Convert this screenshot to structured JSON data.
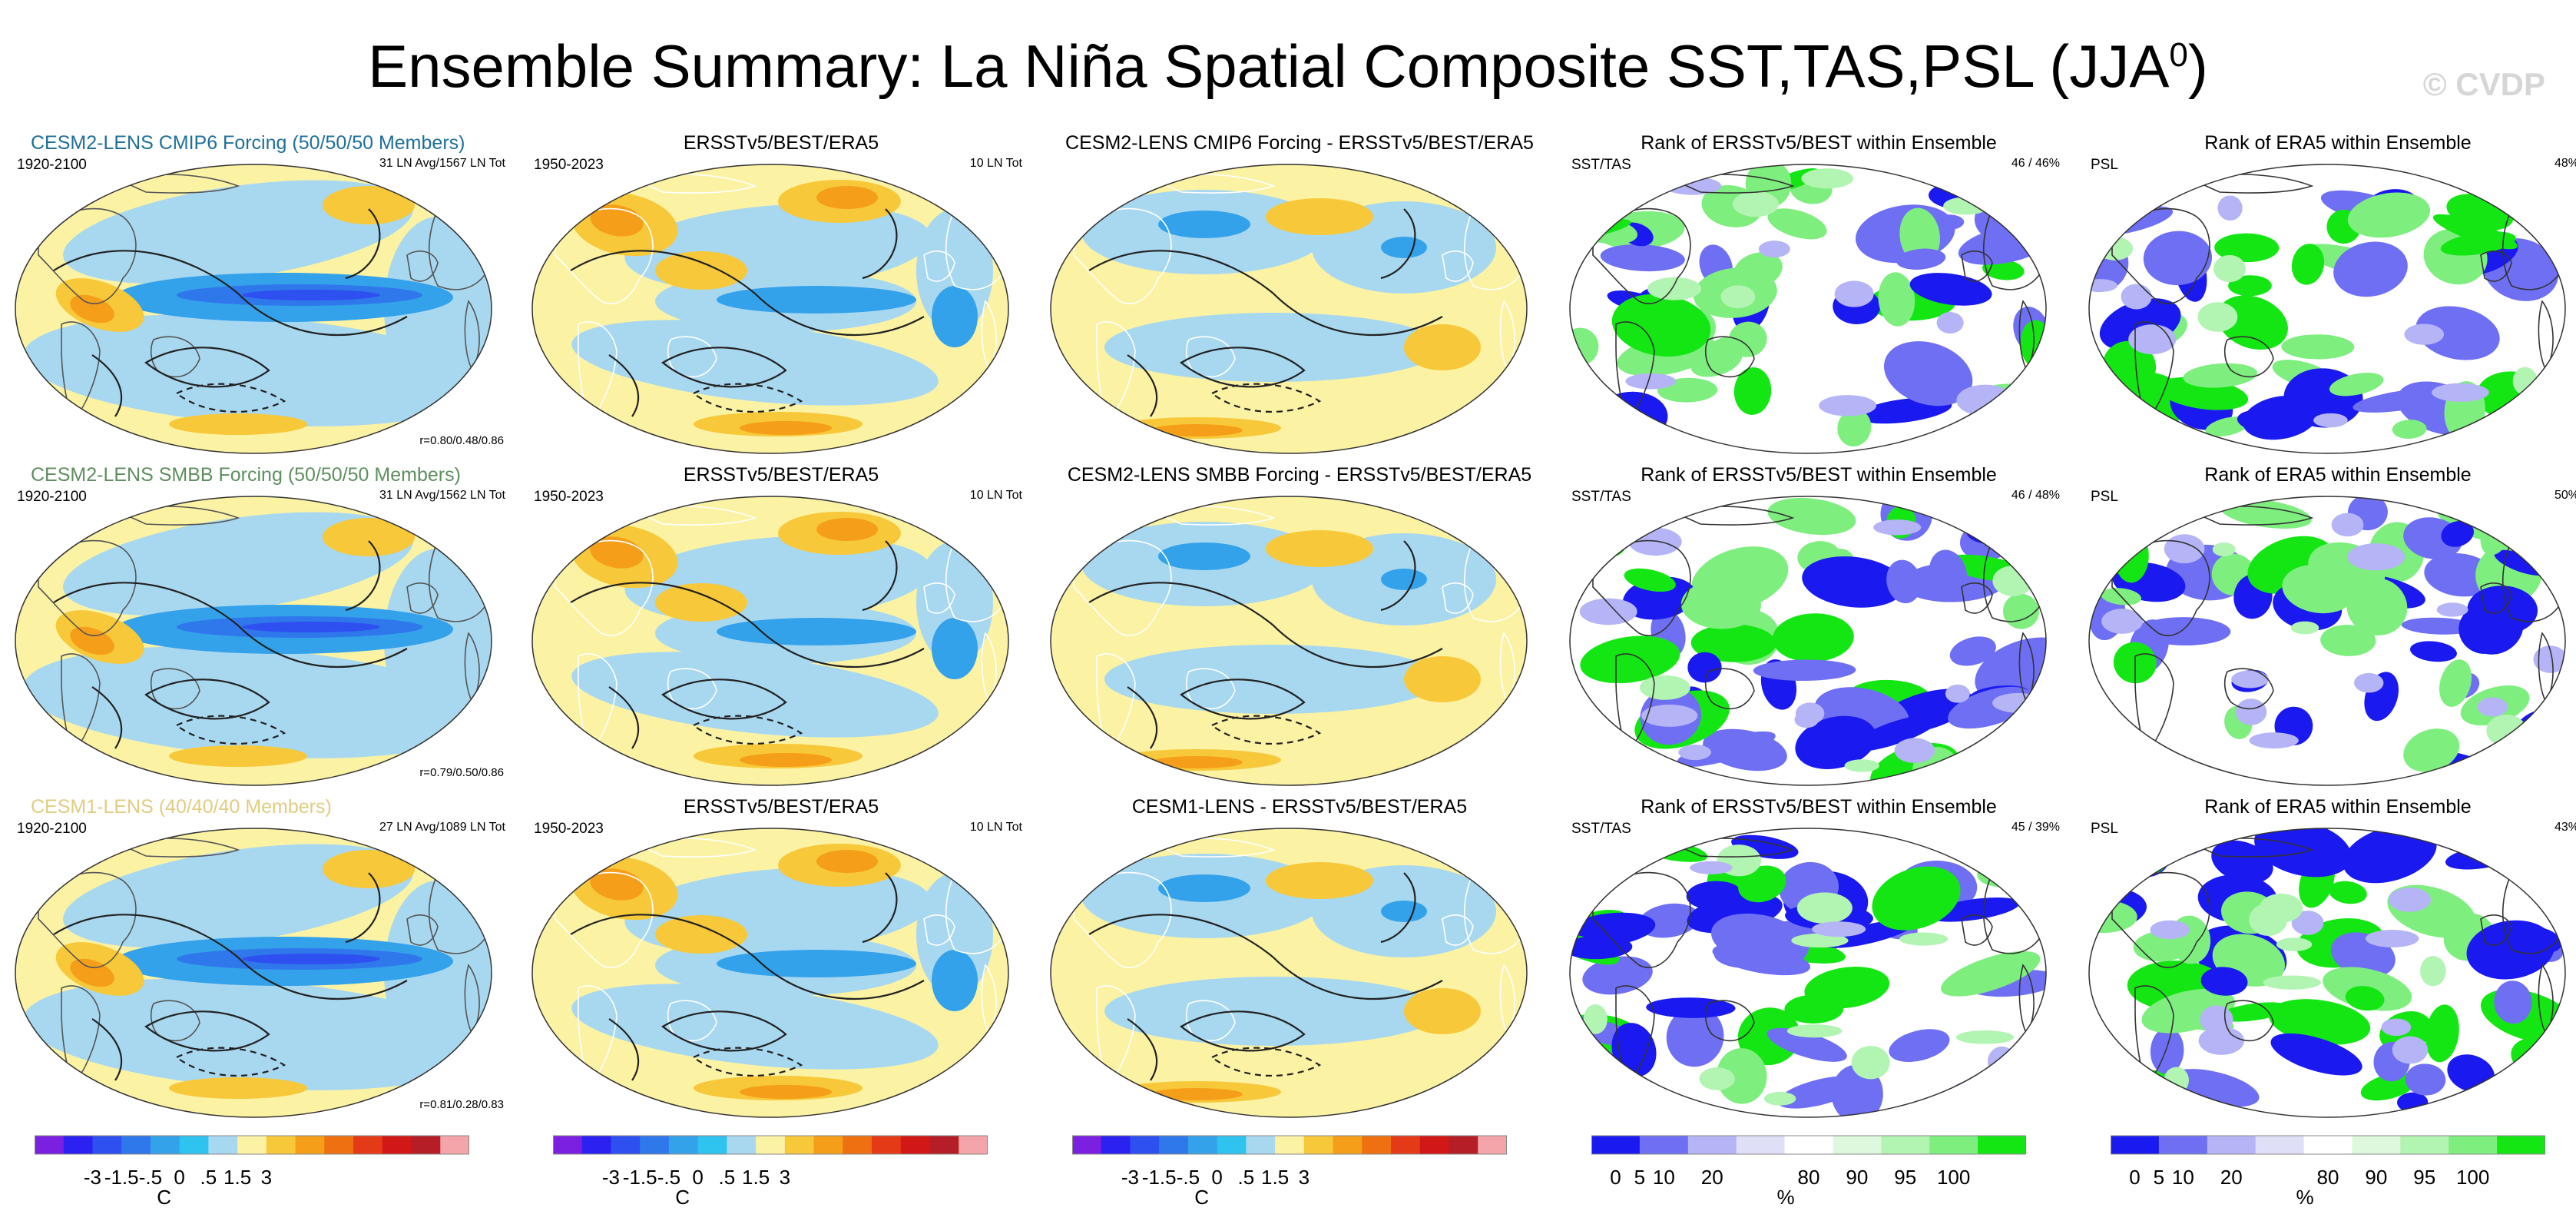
{
  "title": "Ensemble Summary: La Niña Spatial Composite SST,TAS,PSL (JJA",
  "title_sup": "0",
  "title_close": ")",
  "watermark": "© CVDP",
  "rows": [
    {
      "model": {
        "title": "CESM2-LENS CMIP6 Forcing (50/50/50 Members)",
        "title_color": "#1f6f9a",
        "period": "1920-2100",
        "count": "31 LN Avg/1567 LN Tot",
        "stat": "r=0.80/0.48/0.86"
      },
      "obs": {
        "title": "ERSSTv5/BEST/ERA5",
        "period": "1950-2023",
        "count": "10 LN Tot"
      },
      "diff": {
        "title": "CESM2-LENS CMIP6 Forcing - ERSSTv5/BEST/ERA5"
      },
      "rank1": {
        "title": "Rank of ERSSTv5/BEST within Ensemble",
        "label": "SST/TAS",
        "pct": "46 /  46%"
      },
      "rank2": {
        "title": "Rank of ERA5 within Ensemble",
        "label": "PSL",
        "pct": "48%"
      }
    },
    {
      "model": {
        "title": "CESM2-LENS SMBB Forcing (50/50/50 Members)",
        "title_color": "#5e8f5e",
        "period": "1920-2100",
        "count": "31 LN Avg/1562 LN Tot",
        "stat": "r=0.79/0.50/0.86"
      },
      "obs": {
        "title": "ERSSTv5/BEST/ERA5",
        "period": "1950-2023",
        "count": "10 LN Tot"
      },
      "diff": {
        "title": "CESM2-LENS SMBB Forcing - ERSSTv5/BEST/ERA5"
      },
      "rank1": {
        "title": "Rank of ERSSTv5/BEST within Ensemble",
        "label": "SST/TAS",
        "pct": "46 /  48%"
      },
      "rank2": {
        "title": "Rank of ERA5 within Ensemble",
        "label": "PSL",
        "pct": "50%"
      }
    },
    {
      "model": {
        "title": "CESM1-LENS (40/40/40 Members)",
        "title_color": "#e3cc82",
        "period": "1920-2100",
        "count": "27 LN Avg/1089 LN Tot",
        "stat": "r=0.81/0.28/0.83"
      },
      "obs": {
        "title": "ERSSTv5/BEST/ERA5",
        "period": "1950-2023",
        "count": "10 LN Tot"
      },
      "diff": {
        "title": "CESM1-LENS - ERSSTv5/BEST/ERA5"
      },
      "rank1": {
        "title": "Rank of ERSSTv5/BEST within Ensemble",
        "label": "SST/TAS",
        "pct": "45 /  39%"
      },
      "rank2": {
        "title": "Rank of ERA5 within Ensemble",
        "label": "PSL",
        "pct": "43%"
      }
    }
  ],
  "colorbars": {
    "temp": {
      "colors": [
        "#7b1fe0",
        "#2b22f2",
        "#2e50f0",
        "#2f78ec",
        "#34a2ea",
        "#2fc3ef",
        "#a8d8f0",
        "#fbf2a4",
        "#f7c839",
        "#f59e1a",
        "#ee7010",
        "#e53a17",
        "#d21717",
        "#b51e26",
        "#f3a5aa"
      ],
      "ticks": [
        "-3",
        "-1.5",
        "-.5",
        "0",
        ".5",
        "1.5",
        "3"
      ],
      "unit": "C"
    },
    "rank": {
      "colors": [
        "#1a1af0",
        "#6f6ff4",
        "#b4b4f7",
        "#dfdff8",
        "#ffffff",
        "#ddf8dd",
        "#b2f4b2",
        "#7eee7e",
        "#14e614"
      ],
      "ticks": [
        "0",
        "5",
        "10",
        "20",
        "80",
        "90",
        "95",
        "100"
      ],
      "unit": "%"
    }
  },
  "chart_data": {
    "type": "heatmap",
    "description_scope": "15 global spatial composite maps (5 columns x 3 rows) with 5 colorbars",
    "temp_scale": {
      "levels": [
        "-3",
        "-1.5",
        "-.5",
        "0",
        ".5",
        "1.5",
        "3"
      ],
      "unit": "C"
    },
    "rank_scale": {
      "levels": [
        "0",
        "5",
        "10",
        "20",
        "80",
        "90",
        "95",
        "100"
      ],
      "unit": "%"
    },
    "pattern_correlations": [
      {
        "model": "CESM2-LENS CMIP6 Forcing",
        "sst": 0.8,
        "tas": 0.48,
        "psl": 0.86
      },
      {
        "model": "CESM2-LENS SMBB Forcing",
        "sst": 0.79,
        "tas": 0.5,
        "psl": 0.86
      },
      {
        "model": "CESM1-LENS",
        "sst": 0.81,
        "tas": 0.28,
        "psl": 0.83
      }
    ],
    "rank_percent": [
      {
        "model": "CESM2-LENS CMIP6 Forcing",
        "sst": 46,
        "tas": 46,
        "psl": 48
      },
      {
        "model": "CESM2-LENS SMBB Forcing",
        "sst": 46,
        "tas": 48,
        "psl": 50
      },
      {
        "model": "CESM1-LENS",
        "sst": 45,
        "tas": 39,
        "psl": 43
      }
    ]
  }
}
